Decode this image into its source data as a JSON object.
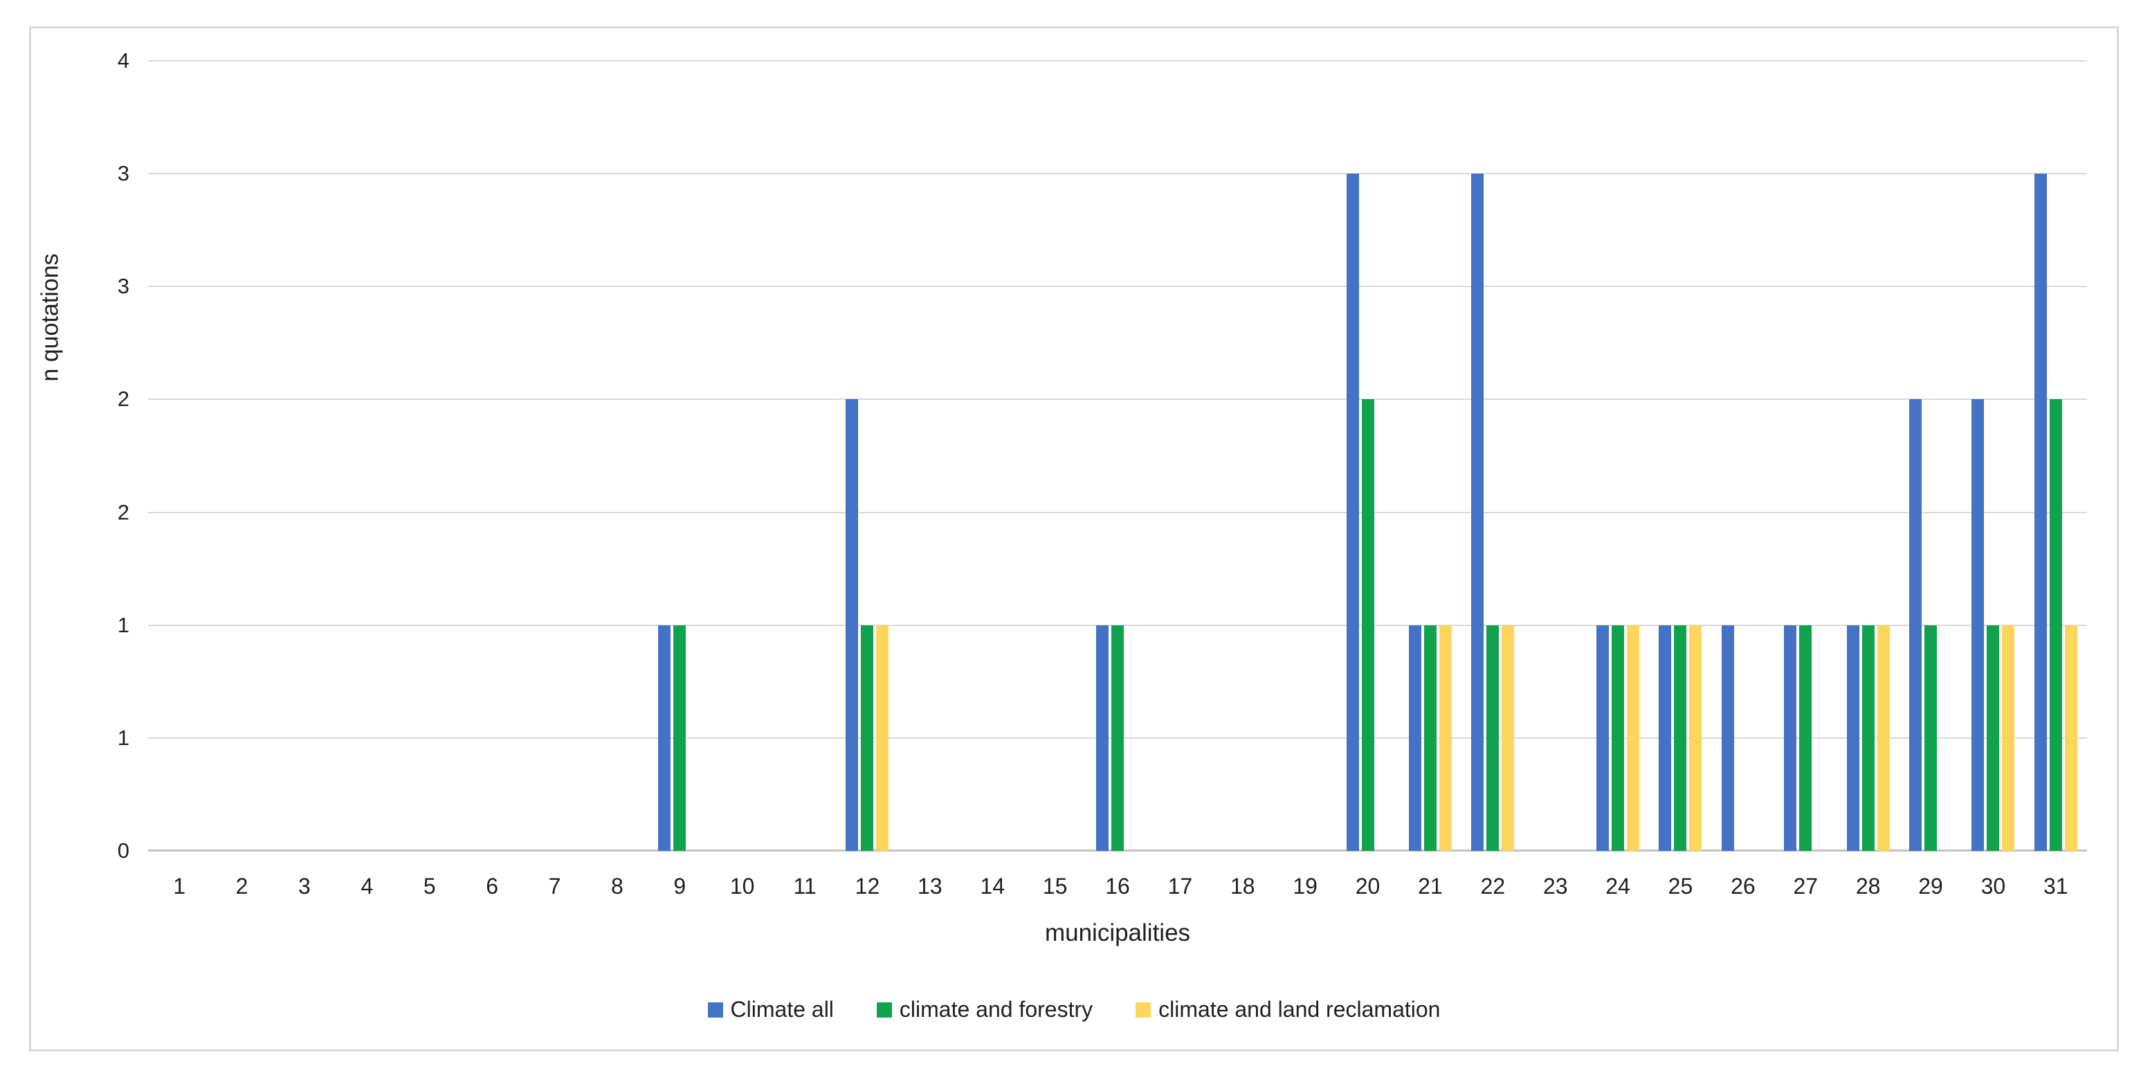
{
  "chart_data": {
    "type": "bar",
    "title": "",
    "xlabel": "municipalities",
    "ylabel": "n quotations",
    "categories": [
      "1",
      "2",
      "3",
      "4",
      "5",
      "6",
      "7",
      "8",
      "9",
      "10",
      "11",
      "12",
      "13",
      "14",
      "15",
      "16",
      "17",
      "18",
      "19",
      "20",
      "21",
      "22",
      "23",
      "24",
      "25",
      "26",
      "27",
      "28",
      "29",
      "30",
      "31"
    ],
    "series": [
      {
        "name": "Climate all",
        "color": "#4472C4",
        "values": [
          0,
          0,
          0,
          0,
          0,
          0,
          0,
          0,
          1,
          0,
          0,
          2,
          0,
          0,
          0,
          1,
          0,
          0,
          0,
          3,
          1,
          3,
          0,
          1,
          1,
          1,
          1,
          1,
          2,
          2,
          3
        ]
      },
      {
        "name": "climate and forestry",
        "color": "#11A24D",
        "values": [
          0,
          0,
          0,
          0,
          0,
          0,
          0,
          0,
          1,
          0,
          0,
          1,
          0,
          0,
          0,
          1,
          0,
          0,
          0,
          2,
          1,
          1,
          0,
          1,
          1,
          0,
          1,
          1,
          1,
          1,
          2
        ]
      },
      {
        "name": "climate and land reclamation",
        "color": "#FFD65C",
        "values": [
          0,
          0,
          0,
          0,
          0,
          0,
          0,
          0,
          0,
          0,
          0,
          1,
          0,
          0,
          0,
          0,
          0,
          0,
          0,
          0,
          1,
          1,
          0,
          1,
          1,
          0,
          0,
          1,
          0,
          1,
          1
        ]
      }
    ],
    "y_axis": {
      "min": 0,
      "max": 3.5,
      "step": 0.5,
      "tick_labels_bottom_to_top": [
        "0",
        "1",
        "1",
        "2",
        "2",
        "3",
        "3",
        "4"
      ]
    },
    "grid": true,
    "legend_position": "bottom"
  },
  "colors": {
    "background": "#FFFFFF",
    "frame_border": "#D9D9D9",
    "gridline": "#D9D9D9",
    "axis_line": "#C2C2C2",
    "text": "#1F1F1F"
  }
}
